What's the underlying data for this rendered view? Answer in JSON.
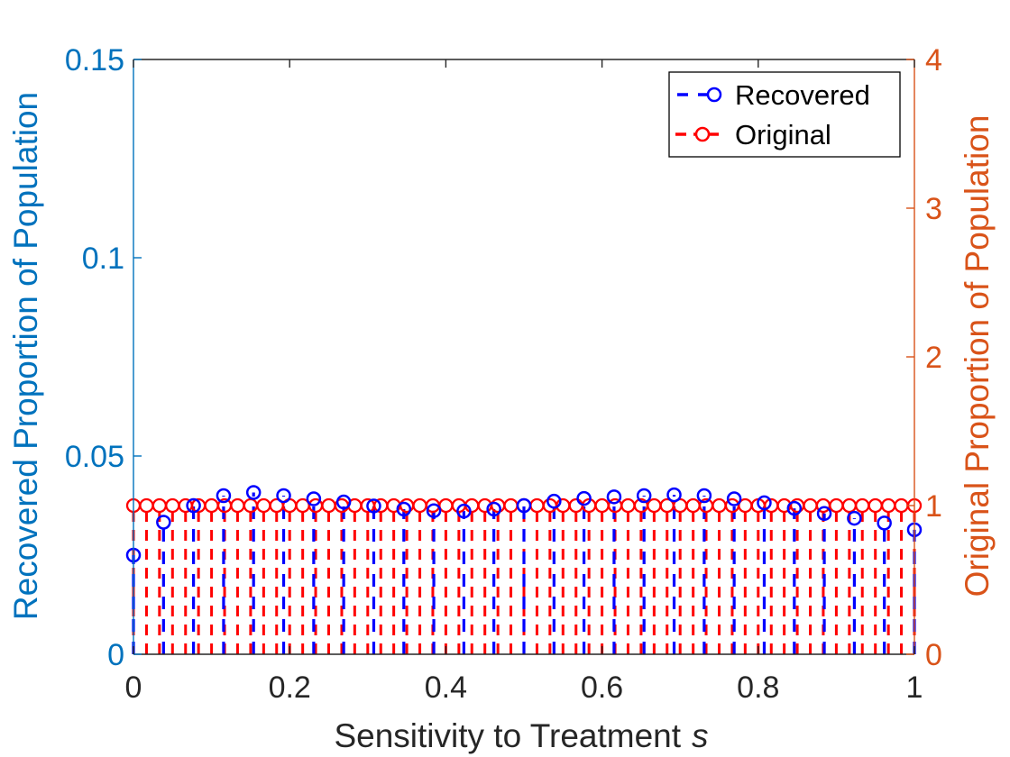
{
  "chart_data": {
    "type": "scatter",
    "subtype": "stem",
    "title": "",
    "xlabel": "Sensitivity to Treatment",
    "xlabel_symbol": "s",
    "ylabel_left": "Recovered Proportion of Population",
    "ylabel_right": "Original Proportion of Population",
    "xlim": [
      0,
      1
    ],
    "ylim_left": [
      0,
      0.15
    ],
    "ylim_right": [
      0,
      4
    ],
    "x_ticks": [
      "0",
      "0.2",
      "0.4",
      "0.6",
      "0.8",
      "1"
    ],
    "y_ticks_left": [
      "0",
      "0.05",
      "0.1",
      "0.15"
    ],
    "y_ticks_right": [
      "0",
      "1",
      "2",
      "3",
      "4"
    ],
    "grid": false,
    "legend_position": "top-right",
    "series": [
      {
        "name": "Recovered",
        "axis": "left",
        "color": "#0000ff",
        "x": [
          0,
          0.0385,
          0.0769,
          0.1154,
          0.1538,
          0.1923,
          0.2308,
          0.2692,
          0.3077,
          0.3462,
          0.3846,
          0.4231,
          0.4615,
          0.5,
          0.5385,
          0.5769,
          0.6154,
          0.6538,
          0.6923,
          0.7308,
          0.7692,
          0.8077,
          0.8462,
          0.8846,
          0.9231,
          0.9615,
          1
        ],
        "values": [
          0.025,
          0.0333,
          0.0375,
          0.04,
          0.0408,
          0.04,
          0.0392,
          0.0384,
          0.0374,
          0.0366,
          0.0362,
          0.0361,
          0.0366,
          0.0375,
          0.0386,
          0.0393,
          0.0397,
          0.04,
          0.0402,
          0.04,
          0.0392,
          0.0382,
          0.0368,
          0.0355,
          0.0343,
          0.0331,
          0.0314
        ]
      },
      {
        "name": "Original",
        "axis": "right",
        "color": "#ff0000",
        "x": [
          0,
          0.0167,
          0.0333,
          0.05,
          0.0667,
          0.0833,
          0.1,
          0.1167,
          0.1333,
          0.15,
          0.1667,
          0.1833,
          0.2,
          0.2167,
          0.2333,
          0.25,
          0.2667,
          0.2833,
          0.3,
          0.3167,
          0.3333,
          0.35,
          0.3667,
          0.3833,
          0.4,
          0.4167,
          0.4333,
          0.45,
          0.4667,
          0.4833,
          0.5,
          0.5167,
          0.5333,
          0.55,
          0.5667,
          0.5833,
          0.6,
          0.6167,
          0.6333,
          0.65,
          0.6667,
          0.6833,
          0.7,
          0.7167,
          0.7333,
          0.75,
          0.7667,
          0.7833,
          0.8,
          0.8167,
          0.8333,
          0.85,
          0.8667,
          0.8833,
          0.9,
          0.9167,
          0.9333,
          0.95,
          0.9667,
          0.9833,
          1
        ],
        "values": [
          1,
          1,
          1,
          1,
          1,
          1,
          1,
          1,
          1,
          1,
          1,
          1,
          1,
          1,
          1,
          1,
          1,
          1,
          1,
          1,
          1,
          1,
          1,
          1,
          1,
          1,
          1,
          1,
          1,
          1,
          1,
          1,
          1,
          1,
          1,
          1,
          1,
          1,
          1,
          1,
          1,
          1,
          1,
          1,
          1,
          1,
          1,
          1,
          1,
          1,
          1,
          1,
          1,
          1,
          1,
          1,
          1,
          1,
          1,
          1,
          1
        ]
      }
    ],
    "colors": {
      "left_axis": "#0072bd",
      "right_axis": "#d95319",
      "x_axis": "#262626"
    }
  }
}
